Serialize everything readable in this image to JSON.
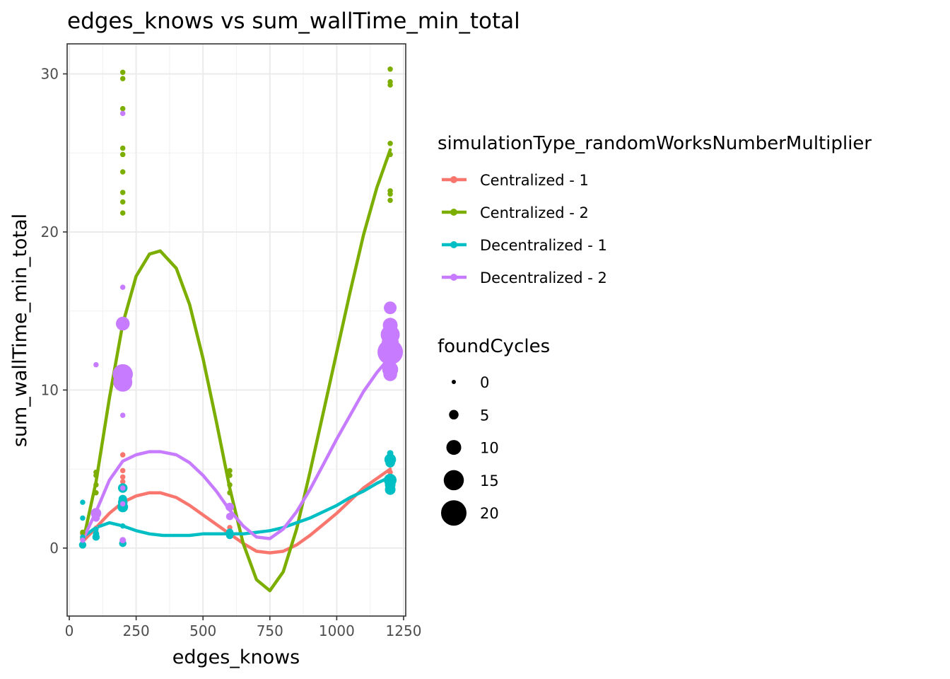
{
  "chart_data": {
    "type": "scatter",
    "title": "edges_knows  vs  sum_wallTime_min_total",
    "xlabel": "edges_knows",
    "ylabel": "sum_wallTime_min_total",
    "xlim": [
      -8,
      1258
    ],
    "ylim": [
      -4.3,
      31.9
    ],
    "x_ticks": [
      0,
      250,
      500,
      750,
      1000,
      1250
    ],
    "y_ticks": [
      0,
      10,
      20,
      30
    ],
    "grid": true,
    "legend_color_title": "simulationType_randomWorksNumberMultiplier",
    "legend_size_title": "foundCycles",
    "size_breaks": [
      0,
      5,
      10,
      15,
      20
    ],
    "size_max": 20,
    "series": [
      {
        "name": "Centralized - 1",
        "color": "#F8766D",
        "points": [
          [
            50,
            0.4,
            0
          ],
          [
            50,
            0.9,
            1
          ],
          [
            100,
            1.0,
            1
          ],
          [
            100,
            1.3,
            0
          ],
          [
            200,
            5.9,
            1
          ],
          [
            200,
            4.9,
            1
          ],
          [
            200,
            4.5,
            1
          ],
          [
            200,
            4.2,
            1
          ],
          [
            200,
            3.9,
            2
          ],
          [
            600,
            1.3,
            1
          ],
          [
            600,
            1.0,
            1
          ],
          [
            1200,
            6.0,
            1
          ],
          [
            1200,
            5.7,
            2
          ],
          [
            1200,
            5.3,
            1
          ],
          [
            1200,
            4.8,
            1
          ]
        ],
        "smooth": [
          [
            50,
            0.4
          ],
          [
            100,
            1.3
          ],
          [
            150,
            2.2
          ],
          [
            200,
            2.9
          ],
          [
            250,
            3.3
          ],
          [
            300,
            3.5
          ],
          [
            340,
            3.5
          ],
          [
            400,
            3.2
          ],
          [
            450,
            2.7
          ],
          [
            500,
            2.1
          ],
          [
            550,
            1.5
          ],
          [
            600,
            0.9
          ],
          [
            650,
            0.3
          ],
          [
            700,
            -0.2
          ],
          [
            750,
            -0.3
          ],
          [
            800,
            -0.2
          ],
          [
            850,
            0.2
          ],
          [
            900,
            0.8
          ],
          [
            950,
            1.5
          ],
          [
            1000,
            2.2
          ],
          [
            1050,
            3.0
          ],
          [
            1100,
            3.8
          ],
          [
            1150,
            4.4
          ],
          [
            1200,
            5.0
          ]
        ]
      },
      {
        "name": "Centralized - 2",
        "color": "#7CAE00",
        "points": [
          [
            50,
            1.0,
            1
          ],
          [
            50,
            0.6,
            1
          ],
          [
            100,
            4.8,
            1
          ],
          [
            100,
            4.6,
            1
          ],
          [
            100,
            4.0,
            1
          ],
          [
            100,
            3.5,
            1
          ],
          [
            200,
            30.1,
            1
          ],
          [
            200,
            29.7,
            1
          ],
          [
            200,
            27.8,
            1
          ],
          [
            200,
            25.3,
            1
          ],
          [
            200,
            24.9,
            1
          ],
          [
            200,
            23.8,
            1
          ],
          [
            200,
            22.5,
            1
          ],
          [
            200,
            21.9,
            1
          ],
          [
            200,
            21.2,
            1
          ],
          [
            600,
            4.9,
            1
          ],
          [
            600,
            4.6,
            1
          ],
          [
            600,
            4.0,
            1
          ],
          [
            600,
            3.5,
            1
          ],
          [
            1200,
            30.3,
            1
          ],
          [
            1200,
            29.5,
            1
          ],
          [
            1200,
            29.3,
            1
          ],
          [
            1200,
            25.6,
            1
          ],
          [
            1200,
            24.9,
            1
          ],
          [
            1200,
            22.6,
            1
          ],
          [
            1200,
            22.4,
            1
          ],
          [
            1200,
            22.0,
            1
          ]
        ],
        "smooth": [
          [
            50,
            0.3
          ],
          [
            100,
            4.2
          ],
          [
            150,
            9.5
          ],
          [
            200,
            14.2
          ],
          [
            250,
            17.2
          ],
          [
            300,
            18.6
          ],
          [
            340,
            18.8
          ],
          [
            400,
            17.7
          ],
          [
            450,
            15.4
          ],
          [
            500,
            12.0
          ],
          [
            550,
            8.0
          ],
          [
            600,
            3.8
          ],
          [
            650,
            0.3
          ],
          [
            700,
            -2.0
          ],
          [
            750,
            -2.7
          ],
          [
            800,
            -1.5
          ],
          [
            850,
            1.2
          ],
          [
            900,
            4.8
          ],
          [
            950,
            8.6
          ],
          [
            1000,
            12.4
          ],
          [
            1050,
            16.2
          ],
          [
            1100,
            19.8
          ],
          [
            1150,
            22.8
          ],
          [
            1200,
            25.2
          ]
        ]
      },
      {
        "name": "Decentralized - 1",
        "color": "#00BFC4",
        "points": [
          [
            50,
            2.9,
            1
          ],
          [
            50,
            1.9,
            1
          ],
          [
            50,
            0.7,
            1
          ],
          [
            50,
            0.2,
            3
          ],
          [
            100,
            1.2,
            1
          ],
          [
            100,
            0.9,
            2
          ],
          [
            100,
            0.7,
            3
          ],
          [
            200,
            3.8,
            5
          ],
          [
            200,
            3.1,
            4
          ],
          [
            200,
            2.9,
            5
          ],
          [
            200,
            2.6,
            6
          ],
          [
            200,
            1.4,
            1
          ],
          [
            200,
            0.3,
            3
          ],
          [
            600,
            1.0,
            3
          ],
          [
            600,
            0.8,
            3
          ],
          [
            1200,
            6.0,
            2
          ],
          [
            1200,
            5.6,
            7
          ],
          [
            1200,
            5.4,
            5
          ],
          [
            1200,
            4.3,
            8
          ],
          [
            1200,
            4.0,
            6
          ],
          [
            1200,
            3.7,
            6
          ]
        ],
        "smooth": [
          [
            50,
            0.7
          ],
          [
            100,
            1.3
          ],
          [
            150,
            1.6
          ],
          [
            200,
            1.4
          ],
          [
            250,
            1.1
          ],
          [
            300,
            0.9
          ],
          [
            350,
            0.8
          ],
          [
            400,
            0.8
          ],
          [
            450,
            0.8
          ],
          [
            500,
            0.9
          ],
          [
            550,
            0.9
          ],
          [
            600,
            0.9
          ],
          [
            650,
            0.9
          ],
          [
            700,
            1.0
          ],
          [
            750,
            1.1
          ],
          [
            800,
            1.3
          ],
          [
            850,
            1.6
          ],
          [
            900,
            1.9
          ],
          [
            950,
            2.3
          ],
          [
            1000,
            2.7
          ],
          [
            1050,
            3.2
          ],
          [
            1100,
            3.6
          ],
          [
            1150,
            4.1
          ],
          [
            1200,
            4.5
          ]
        ]
      },
      {
        "name": "Decentralized - 2",
        "color": "#C77CFF",
        "points": [
          [
            50,
            0.5,
            1
          ],
          [
            100,
            11.6,
            1
          ],
          [
            100,
            2.2,
            6
          ],
          [
            100,
            1.9,
            3
          ],
          [
            200,
            27.5,
            1
          ],
          [
            200,
            16.5,
            1
          ],
          [
            200,
            14.2,
            9
          ],
          [
            200,
            11.0,
            15
          ],
          [
            200,
            10.5,
            14
          ],
          [
            200,
            8.4,
            1
          ],
          [
            200,
            3.8,
            1
          ],
          [
            200,
            2.8,
            1
          ],
          [
            200,
            0.5,
            2
          ],
          [
            600,
            2.6,
            4
          ],
          [
            600,
            2.0,
            3
          ],
          [
            1200,
            15.2,
            8
          ],
          [
            1200,
            14.1,
            10
          ],
          [
            1200,
            13.5,
            14
          ],
          [
            1200,
            13.0,
            12
          ],
          [
            1200,
            12.4,
            20
          ],
          [
            1200,
            11.3,
            11
          ],
          [
            1200,
            11.0,
            9
          ]
        ],
        "smooth": [
          [
            50,
            0.5
          ],
          [
            100,
            2.3
          ],
          [
            150,
            4.3
          ],
          [
            200,
            5.5
          ],
          [
            250,
            5.9
          ],
          [
            300,
            6.1
          ],
          [
            340,
            6.1
          ],
          [
            400,
            5.9
          ],
          [
            450,
            5.4
          ],
          [
            500,
            4.6
          ],
          [
            550,
            3.6
          ],
          [
            600,
            2.4
          ],
          [
            650,
            1.4
          ],
          [
            700,
            0.7
          ],
          [
            750,
            0.6
          ],
          [
            800,
            1.2
          ],
          [
            850,
            2.3
          ],
          [
            900,
            3.7
          ],
          [
            950,
            5.3
          ],
          [
            1000,
            6.9
          ],
          [
            1050,
            8.4
          ],
          [
            1100,
            9.9
          ],
          [
            1150,
            11.1
          ],
          [
            1200,
            12.1
          ]
        ]
      }
    ]
  }
}
